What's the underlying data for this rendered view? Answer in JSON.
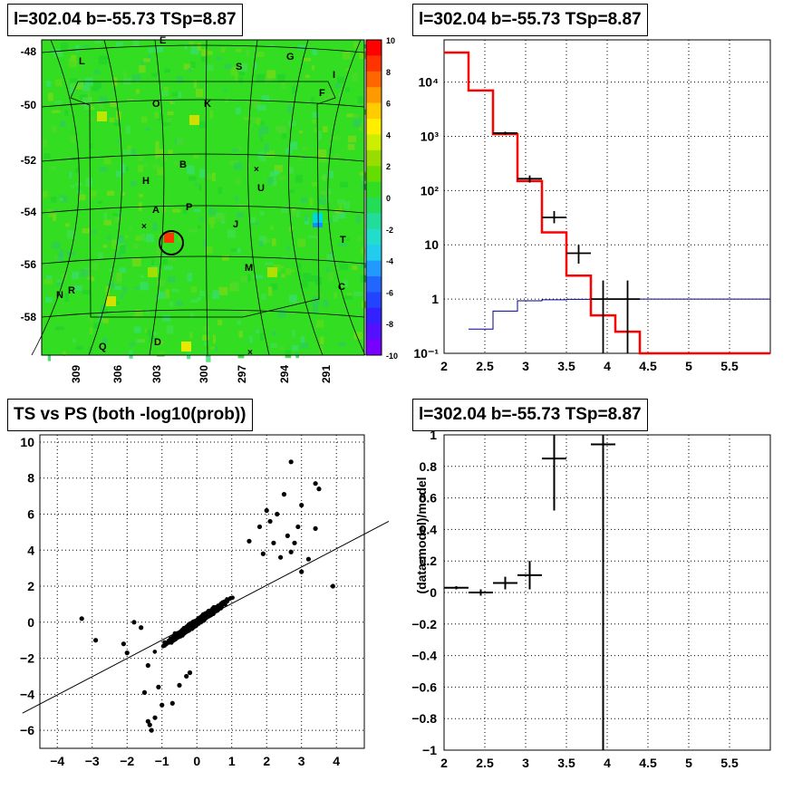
{
  "panels": {
    "skymap": {
      "title": "l=302.04 b=-55.73 TSp=8.87"
    },
    "spectrum": {
      "title": "l=302.04 b=-55.73 TSp=8.87"
    },
    "scatter": {
      "title": "TS vs PS (both -log10(prob))"
    },
    "residual": {
      "title": "l=302.04 b=-55.73 TSp=8.87"
    }
  },
  "colors": {
    "data": "#000000",
    "model": "#ff0000",
    "background": "#00008b",
    "map_base": "#33dd22"
  },
  "chart_data": [
    {
      "type": "heatmap",
      "title": "l=302.04 b=-55.73 TSp=8.87",
      "colorbar": {
        "min": -10,
        "max": 10,
        "ticks": [
          10,
          8,
          6,
          4,
          2,
          0,
          -2,
          -4,
          -6,
          -8,
          -10
        ]
      },
      "y_ticks": [
        -48,
        -50,
        -52,
        -54,
        -56,
        -58
      ],
      "x_ticks": [
        "309",
        "306",
        "303",
        "300",
        "297",
        "294",
        "291"
      ],
      "region_labels": [
        "E",
        "L",
        "S",
        "G",
        "I",
        "F",
        "O",
        "K",
        "B",
        "H",
        "U",
        "A",
        "P",
        "J",
        "T",
        "M",
        "N",
        "R",
        "C",
        "Q",
        "D"
      ],
      "source_marker": {
        "l": 302.04,
        "b": -55.73
      }
    },
    {
      "type": "line",
      "title": "l=302.04 b=-55.73 TSp=8.87",
      "log_y": true,
      "xlim": [
        2,
        6
      ],
      "ylim": [
        0.1,
        60000
      ],
      "x_ticks": [
        "2",
        "2.5",
        "3",
        "3.5",
        "4",
        "4.5",
        "5",
        "5.5"
      ],
      "y_ticks": [
        {
          "v": 0.1,
          "t": "10⁻¹"
        },
        {
          "v": 1,
          "t": "1"
        },
        {
          "v": 10,
          "t": "10"
        },
        {
          "v": 100,
          "t": "10²"
        },
        {
          "v": 1000,
          "t": "10³"
        },
        {
          "v": 10000,
          "t": "10⁴"
        }
      ],
      "series": [
        {
          "name": "model",
          "style": "step",
          "edges": [
            2,
            2.3,
            2.6,
            2.9,
            3.2,
            3.5,
            3.8,
            4.1,
            4.4,
            6.0
          ],
          "values": [
            35000,
            7000,
            1100,
            150,
            17,
            2.7,
            0.5,
            0.25,
            0.1
          ]
        },
        {
          "name": "background",
          "style": "step",
          "edges": [
            2.3,
            2.6,
            2.9,
            3.2,
            3.5,
            3.8,
            4.1,
            4.4,
            6.0
          ],
          "values": [
            0.28,
            0.6,
            0.93,
            0.97,
            0.99,
            1.0,
            1.0,
            1.0
          ]
        },
        {
          "name": "data",
          "style": "errorbar",
          "points": [
            {
              "x": 2.75,
              "xerr": 0.15,
              "y": 1150,
              "ylo": 1080,
              "yhi": 1220
            },
            {
              "x": 3.05,
              "xerr": 0.15,
              "y": 165,
              "ylo": 140,
              "yhi": 190
            },
            {
              "x": 3.35,
              "xerr": 0.15,
              "y": 32,
              "ylo": 25,
              "yhi": 42
            },
            {
              "x": 3.65,
              "xerr": 0.15,
              "y": 7,
              "ylo": 4.5,
              "yhi": 10
            },
            {
              "x": 3.95,
              "xerr": 0.15,
              "y": 1,
              "ylo": 0.1,
              "yhi": 2.2
            },
            {
              "x": 4.25,
              "xerr": 0.15,
              "y": 1,
              "ylo": 0.1,
              "yhi": 2.2
            }
          ]
        }
      ]
    },
    {
      "type": "scatter",
      "title": "TS vs PS (both -log10(prob))",
      "xlim": [
        -4.5,
        4.8
      ],
      "ylim": [
        -7,
        10.4
      ],
      "x_ticks": [
        -4,
        -3,
        -2,
        -1,
        0,
        1,
        2,
        3,
        4
      ],
      "y_ticks": [
        -6,
        -4,
        -2,
        0,
        2,
        4,
        6,
        8,
        10
      ],
      "fit_line": {
        "x1": -5,
        "y1": -5.05,
        "x2": 5.5,
        "y2": 5.6
      },
      "cloud": {
        "x_center": 0,
        "y_center": 0,
        "n": 2200
      },
      "points": [
        [
          -3.3,
          0.2
        ],
        [
          -2.9,
          -1.0
        ],
        [
          -2.0,
          -1.7
        ],
        [
          -2.1,
          -1.2
        ],
        [
          -1.8,
          0.0
        ],
        [
          -1.6,
          -0.3
        ],
        [
          -1.4,
          -2.4
        ],
        [
          -1.4,
          -5.5
        ],
        [
          -1.35,
          -5.7
        ],
        [
          -1.3,
          -6.0
        ],
        [
          -1.2,
          -5.3
        ],
        [
          -1.0,
          -4.6
        ],
        [
          -0.7,
          -4.5
        ],
        [
          -0.5,
          -3.5
        ],
        [
          -0.3,
          -3.0
        ],
        [
          -0.2,
          -2.8
        ],
        [
          -1.5,
          -3.9
        ],
        [
          -1.1,
          -3.6
        ],
        [
          2.7,
          8.9
        ],
        [
          3.4,
          7.7
        ],
        [
          3.5,
          7.4
        ],
        [
          2.5,
          7.1
        ],
        [
          2.3,
          6.0
        ],
        [
          3.0,
          6.5
        ],
        [
          2.0,
          6.2
        ],
        [
          2.9,
          5.3
        ],
        [
          3.4,
          5.2
        ],
        [
          2.8,
          4.4
        ],
        [
          3.9,
          2.0
        ],
        [
          3.2,
          3.5
        ],
        [
          2.6,
          4.8
        ],
        [
          2.1,
          5.6
        ],
        [
          1.8,
          5.3
        ],
        [
          2.2,
          4.4
        ],
        [
          1.5,
          4.5
        ],
        [
          1.9,
          3.8
        ],
        [
          2.4,
          3.6
        ],
        [
          2.7,
          3.9
        ],
        [
          3.0,
          2.8
        ]
      ]
    },
    {
      "type": "scatter",
      "title": "l=302.04 b=-55.73 TSp=8.87",
      "ylabel": "(data-model)/model",
      "xlim": [
        2,
        6
      ],
      "ylim": [
        -1,
        1
      ],
      "x_ticks": [
        "2",
        "2.5",
        "3",
        "3.5",
        "4",
        "4.5",
        "5",
        "5.5"
      ],
      "y_ticks": [
        "-1",
        "-0.8",
        "-0.6",
        "-0.4",
        "-0.2",
        "0",
        "0.2",
        "0.4",
        "0.6",
        "0.8",
        "1"
      ],
      "points": [
        {
          "x": 2.15,
          "xerr": 0.15,
          "y": 0.03,
          "ylo": 0.02,
          "yhi": 0.04
        },
        {
          "x": 2.45,
          "xerr": 0.15,
          "y": 0.0,
          "ylo": -0.02,
          "yhi": 0.02
        },
        {
          "x": 2.75,
          "xerr": 0.15,
          "y": 0.06,
          "ylo": 0.02,
          "yhi": 0.1
        },
        {
          "x": 3.05,
          "xerr": 0.15,
          "y": 0.11,
          "ylo": 0.02,
          "yhi": 0.2
        },
        {
          "x": 3.35,
          "xerr": 0.15,
          "y": 0.85,
          "ylo": 0.52,
          "yhi": 1.0
        },
        {
          "x": 3.95,
          "xerr": 0.15,
          "y": 0.94,
          "ylo": -1.0,
          "yhi": 1.0
        }
      ]
    }
  ]
}
